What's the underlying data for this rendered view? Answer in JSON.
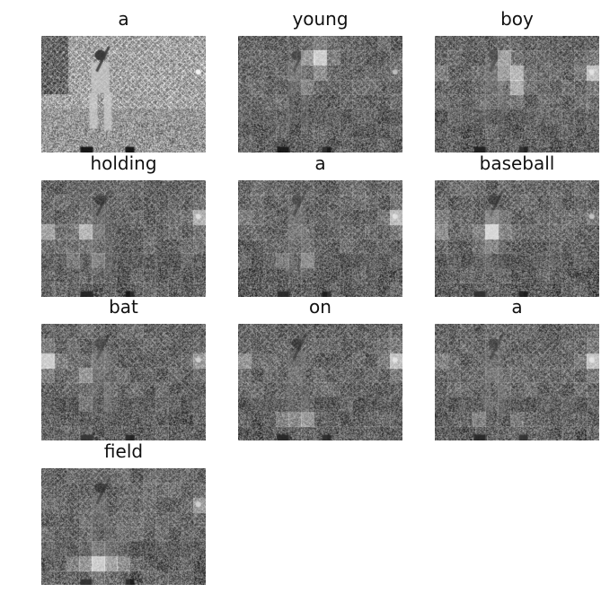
{
  "caption_words": [
    "a",
    "young",
    "boy",
    "holding",
    "a",
    "baseball",
    "bat",
    "on",
    "a",
    "field"
  ],
  "panels": [
    {
      "word": "a",
      "hotspots": []
    },
    {
      "word": "young",
      "hotspots": [
        {
          "col": 6,
          "row": 1,
          "v": 0.95
        },
        {
          "col": 5,
          "row": 1,
          "v": 0.55
        },
        {
          "col": 6,
          "row": 2,
          "v": 0.45
        },
        {
          "col": 6,
          "row": 0,
          "v": 0.35
        },
        {
          "col": 5,
          "row": 3,
          "v": 0.35
        }
      ]
    },
    {
      "word": "boy",
      "hotspots": [
        {
          "col": 5,
          "row": 1,
          "v": 0.6
        },
        {
          "col": 6,
          "row": 2,
          "v": 0.75
        },
        {
          "col": 6,
          "row": 3,
          "v": 0.7
        },
        {
          "col": 5,
          "row": 2,
          "v": 0.55
        },
        {
          "col": 12,
          "row": 2,
          "v": 0.85
        },
        {
          "col": 0,
          "row": 2,
          "v": 0.35
        }
      ]
    },
    {
      "word": "holding",
      "hotspots": [
        {
          "col": 3,
          "row": 3,
          "v": 0.75
        },
        {
          "col": 0,
          "row": 3,
          "v": 0.6
        },
        {
          "col": 12,
          "row": 2,
          "v": 0.7
        },
        {
          "col": 4,
          "row": 5,
          "v": 0.4
        },
        {
          "col": 2,
          "row": 5,
          "v": 0.35
        }
      ]
    },
    {
      "word": "a",
      "hotspots": [
        {
          "col": 12,
          "row": 2,
          "v": 0.8
        },
        {
          "col": 0,
          "row": 2,
          "v": 0.35
        },
        {
          "col": 3,
          "row": 5,
          "v": 0.35
        },
        {
          "col": 5,
          "row": 5,
          "v": 0.45
        }
      ]
    },
    {
      "word": "baseball",
      "hotspots": [
        {
          "col": 4,
          "row": 3,
          "v": 1.0
        },
        {
          "col": 0,
          "row": 3,
          "v": 0.45
        },
        {
          "col": 0,
          "row": 2,
          "v": 0.35
        },
        {
          "col": 12,
          "row": 2,
          "v": 0.3
        }
      ]
    },
    {
      "word": "bat",
      "hotspots": [
        {
          "col": 0,
          "row": 2,
          "v": 0.95
        },
        {
          "col": 12,
          "row": 2,
          "v": 0.55
        },
        {
          "col": 3,
          "row": 3,
          "v": 0.5
        },
        {
          "col": 3,
          "row": 5,
          "v": 0.3
        }
      ]
    },
    {
      "word": "on",
      "hotspots": [
        {
          "col": 12,
          "row": 2,
          "v": 0.85
        },
        {
          "col": 0,
          "row": 2,
          "v": 0.5
        },
        {
          "col": 5,
          "row": 6,
          "v": 0.55
        },
        {
          "col": 4,
          "row": 6,
          "v": 0.45
        },
        {
          "col": 3,
          "row": 6,
          "v": 0.4
        }
      ]
    },
    {
      "word": "a",
      "hotspots": [
        {
          "col": 12,
          "row": 2,
          "v": 0.85
        },
        {
          "col": 0,
          "row": 2,
          "v": 0.35
        },
        {
          "col": 3,
          "row": 6,
          "v": 0.4
        },
        {
          "col": 6,
          "row": 6,
          "v": 0.35
        }
      ]
    },
    {
      "word": "field",
      "hotspots": [
        {
          "col": 4,
          "row": 6,
          "v": 0.95
        },
        {
          "col": 5,
          "row": 6,
          "v": 0.65
        },
        {
          "col": 3,
          "row": 6,
          "v": 0.55
        },
        {
          "col": 6,
          "row": 6,
          "v": 0.5
        },
        {
          "col": 12,
          "row": 2,
          "v": 0.55
        },
        {
          "col": 2,
          "row": 6,
          "v": 0.4
        }
      ]
    }
  ]
}
